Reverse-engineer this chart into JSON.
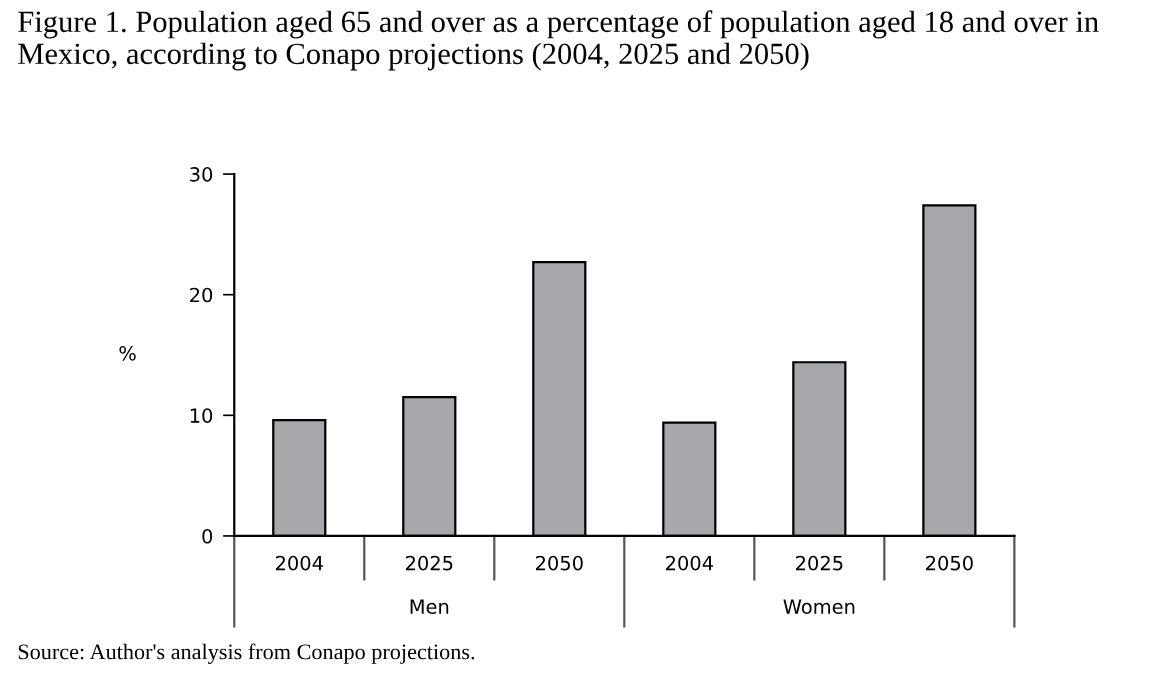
{
  "chart_data": {
    "type": "bar",
    "title": "Figure 1. Population aged 65 and over as a percentage of population aged 18 and over in Mexico, according to Conapo projections (2004, 2025 and 2050)",
    "categories": [
      "2004",
      "2025",
      "2050",
      "2004",
      "2025",
      "2050"
    ],
    "values": [
      9.6,
      11.5,
      22.7,
      9.4,
      14.4,
      27.4
    ],
    "color": "#a7a8ab",
    "ylabel": "%",
    "ylim": [
      0,
      30
    ],
    "yticks": [
      0,
      10,
      20,
      30
    ],
    "grid": false,
    "legend": false,
    "annotations": [
      "Men",
      "Women",
      "Source: Author's analysis from Conapo projections."
    ]
  }
}
